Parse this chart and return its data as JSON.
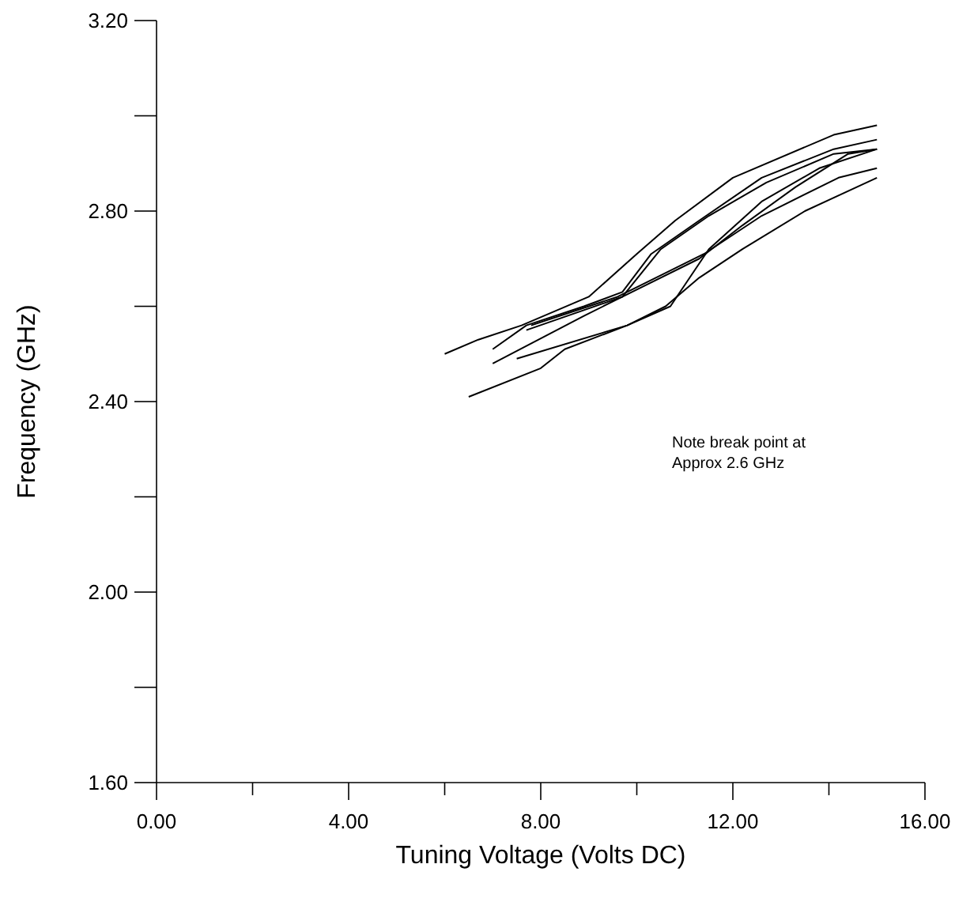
{
  "chart_data": {
    "type": "line",
    "xlabel": "Tuning Voltage (Volts DC)",
    "ylabel": "Frequency (GHz)",
    "xlim": [
      0,
      16
    ],
    "ylim": [
      1.6,
      3.2
    ],
    "xticks": [
      {
        "value": 0,
        "label": "0.00"
      },
      {
        "value": 2,
        "label": null
      },
      {
        "value": 4,
        "label": "4.00"
      },
      {
        "value": 6,
        "label": null
      },
      {
        "value": 8,
        "label": "8.00"
      },
      {
        "value": 10,
        "label": null
      },
      {
        "value": 12,
        "label": "12.00"
      },
      {
        "value": 14,
        "label": null
      },
      {
        "value": 16,
        "label": "16.00"
      }
    ],
    "yticks": [
      {
        "value": 1.6,
        "label": "1.60"
      },
      {
        "value": 1.8,
        "label": null
      },
      {
        "value": 2.0,
        "label": "2.00"
      },
      {
        "value": 2.2,
        "label": null
      },
      {
        "value": 2.4,
        "label": "2.40"
      },
      {
        "value": 2.6,
        "label": null
      },
      {
        "value": 2.8,
        "label": "2.80"
      },
      {
        "value": 3.0,
        "label": null
      },
      {
        "value": 3.2,
        "label": "3.20"
      }
    ],
    "grid": false,
    "marker": "none",
    "line_style": "solid",
    "annotations": [
      "Note break point at\nApprox 2.6 GHz"
    ],
    "series": [
      {
        "color": "#000000",
        "x": [
          6.0,
          6.7,
          7.6,
          9.0,
          10.0,
          10.8,
          12.0,
          14.1,
          15.0
        ],
        "values": [
          2.5,
          2.53,
          2.56,
          2.62,
          2.71,
          2.78,
          2.87,
          2.96,
          2.98
        ]
      },
      {
        "color": "#000000",
        "x": [
          7.0,
          7.7,
          8.9,
          9.7,
          10.3,
          11.3,
          12.6,
          14.1,
          15.0
        ],
        "values": [
          2.51,
          2.56,
          2.6,
          2.63,
          2.71,
          2.78,
          2.87,
          2.93,
          2.95
        ]
      },
      {
        "color": "#000000",
        "x": [
          7.7,
          9.7,
          10.5,
          11.5,
          12.7,
          14.1,
          15.0
        ],
        "values": [
          2.55,
          2.62,
          2.72,
          2.79,
          2.86,
          2.92,
          2.93
        ]
      },
      {
        "color": "#000000",
        "x": [
          7.0,
          8.9,
          9.9,
          11.3,
          12.2,
          13.3,
          14.4,
          15.0
        ],
        "values": [
          2.48,
          2.58,
          2.63,
          2.7,
          2.77,
          2.85,
          2.92,
          2.93
        ]
      },
      {
        "color": "#000000",
        "x": [
          7.8,
          9.6,
          11.4,
          12.6,
          14.2,
          15.0
        ],
        "values": [
          2.56,
          2.62,
          2.71,
          2.79,
          2.87,
          2.89
        ]
      },
      {
        "color": "#000000",
        "x": [
          7.5,
          9.8,
          10.7,
          11.5,
          12.6,
          13.8,
          15.0
        ],
        "values": [
          2.49,
          2.56,
          2.6,
          2.72,
          2.82,
          2.89,
          2.93
        ]
      },
      {
        "color": "#000000",
        "x": [
          6.5,
          8.0,
          8.5,
          9.8,
          10.6,
          11.3,
          12.2,
          13.5,
          15.0
        ],
        "values": [
          2.41,
          2.47,
          2.51,
          2.56,
          2.6,
          2.66,
          2.72,
          2.8,
          2.87
        ]
      }
    ]
  }
}
